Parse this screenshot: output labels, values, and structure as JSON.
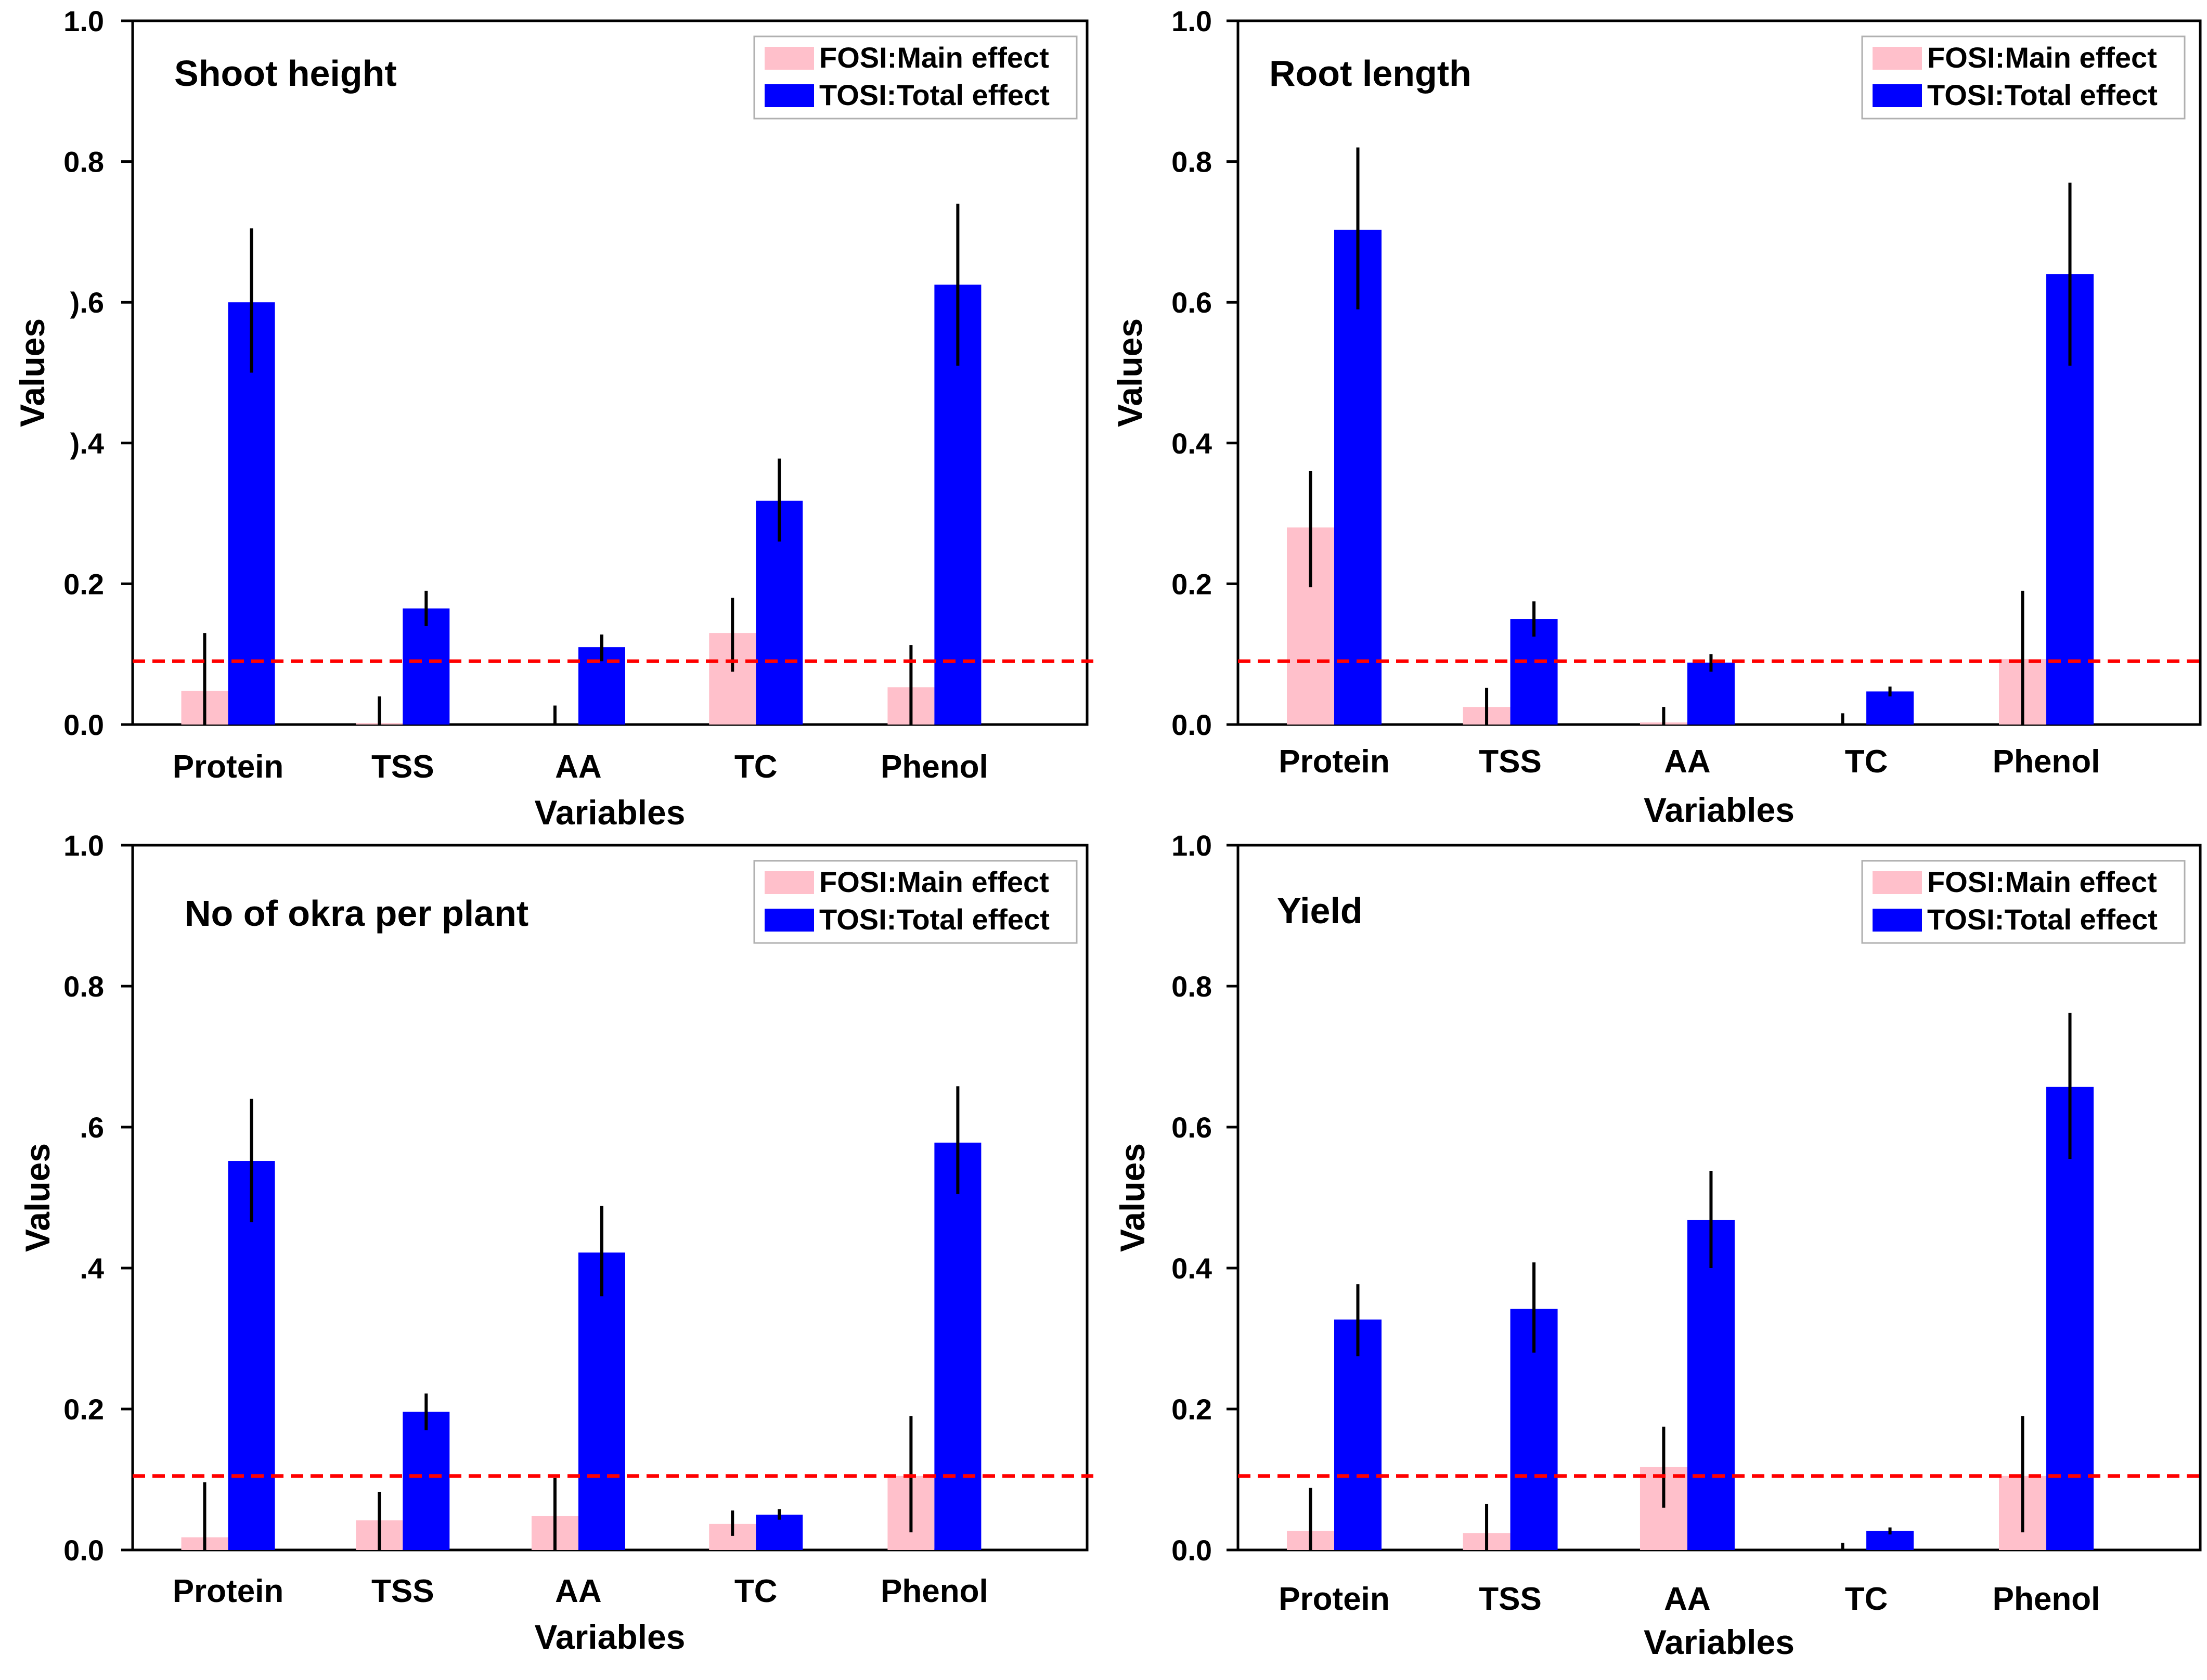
{
  "figure": {
    "colors": {
      "fosi": "#ffc0cb",
      "tosi": "#0000ff",
      "threshold": "#ff0000",
      "error": "#000000"
    }
  },
  "chart_data": [
    {
      "type": "bar",
      "title": "Shoot height",
      "xlabel": "Variables",
      "ylabel": "Values",
      "ylim": [
        0,
        1.0
      ],
      "yticks": [
        "0.0",
        "0.2",
        ").4",
        ").6",
        "0.8",
        "1.0"
      ],
      "categories": [
        "Protein",
        "TSS",
        "AA",
        "TC",
        "Phenol"
      ],
      "threshold": 0.09,
      "series": [
        {
          "name": "FOSI:Main effect",
          "values": [
            0.048,
            0.002,
            0.0,
            0.13,
            0.053
          ],
          "errors": [
            [
              0.0,
              0.13
            ],
            [
              0.0,
              0.04
            ],
            [
              0.0,
              0.027
            ],
            [
              0.075,
              0.18
            ],
            [
              0.0,
              0.113
            ]
          ]
        },
        {
          "name": "TOSI:Total effect",
          "values": [
            0.6,
            0.165,
            0.11,
            0.318,
            0.625
          ],
          "errors": [
            [
              0.5,
              0.705
            ],
            [
              0.14,
              0.19
            ],
            [
              0.09,
              0.128
            ],
            [
              0.26,
              0.378
            ],
            [
              0.51,
              0.74
            ]
          ]
        }
      ]
    },
    {
      "type": "bar",
      "title": "Root length",
      "xlabel": "Variables",
      "ylabel": "Values",
      "ylim": [
        0,
        1.0
      ],
      "yticks": [
        "0.0",
        "0.2",
        "0.4",
        "0.6",
        "0.8",
        "1.0"
      ],
      "categories": [
        "Protein",
        "TSS",
        "AA",
        "TC",
        "Phenol"
      ],
      "threshold": 0.09,
      "series": [
        {
          "name": "FOSI:Main effect",
          "values": [
            0.28,
            0.025,
            0.003,
            0.0,
            0.093
          ],
          "errors": [
            [
              0.195,
              0.36
            ],
            [
              0.0,
              0.052
            ],
            [
              0.0,
              0.025
            ],
            [
              0.0,
              0.016
            ],
            [
              0.0,
              0.19
            ]
          ]
        },
        {
          "name": "TOSI:Total effect",
          "values": [
            0.703,
            0.15,
            0.088,
            0.047,
            0.64
          ],
          "errors": [
            [
              0.59,
              0.82
            ],
            [
              0.125,
              0.175
            ],
            [
              0.075,
              0.1
            ],
            [
              0.04,
              0.054
            ],
            [
              0.51,
              0.77
            ]
          ]
        }
      ]
    },
    {
      "type": "bar",
      "title": "No of okra per plant",
      "xlabel": "Variables",
      "ylabel": "Values",
      "ylim": [
        0,
        1.0
      ],
      "yticks": [
        "0.0",
        "0.2",
        ".4",
        ".6",
        "0.8",
        "1.0"
      ],
      "categories": [
        "Protein",
        "TSS",
        "AA",
        "TC",
        "Phenol"
      ],
      "threshold": 0.105,
      "series": [
        {
          "name": "FOSI:Main effect",
          "values": [
            0.018,
            0.042,
            0.048,
            0.037,
            0.105
          ],
          "errors": [
            [
              0.0,
              0.096
            ],
            [
              0.0,
              0.082
            ],
            [
              0.0,
              0.102
            ],
            [
              0.02,
              0.056
            ],
            [
              0.025,
              0.19
            ]
          ]
        },
        {
          "name": "TOSI:Total effect",
          "values": [
            0.552,
            0.196,
            0.422,
            0.05,
            0.578
          ],
          "errors": [
            [
              0.465,
              0.64
            ],
            [
              0.17,
              0.222
            ],
            [
              0.36,
              0.488
            ],
            [
              0.043,
              0.058
            ],
            [
              0.505,
              0.658
            ]
          ]
        }
      ]
    },
    {
      "type": "bar",
      "title": "Yield",
      "xlabel": "Variables",
      "ylabel": "Values",
      "ylim": [
        0,
        1.0
      ],
      "yticks": [
        "0.0",
        "0.2",
        "0.4",
        "0.6",
        "0.8",
        "1.0"
      ],
      "categories": [
        "Protein",
        "TSS",
        "AA",
        "TC",
        "Phenol"
      ],
      "threshold": 0.105,
      "series": [
        {
          "name": "FOSI:Main effect",
          "values": [
            0.027,
            0.024,
            0.118,
            0.0,
            0.105
          ],
          "errors": [
            [
              0.0,
              0.088
            ],
            [
              0.0,
              0.065
            ],
            [
              0.06,
              0.175
            ],
            [
              0.0,
              0.01
            ],
            [
              0.025,
              0.19
            ]
          ]
        },
        {
          "name": "TOSI:Total effect",
          "values": [
            0.327,
            0.342,
            0.468,
            0.027,
            0.657
          ],
          "errors": [
            [
              0.275,
              0.377
            ],
            [
              0.28,
              0.408
            ],
            [
              0.4,
              0.538
            ],
            [
              0.022,
              0.032
            ],
            [
              0.555,
              0.762
            ]
          ]
        }
      ]
    }
  ]
}
